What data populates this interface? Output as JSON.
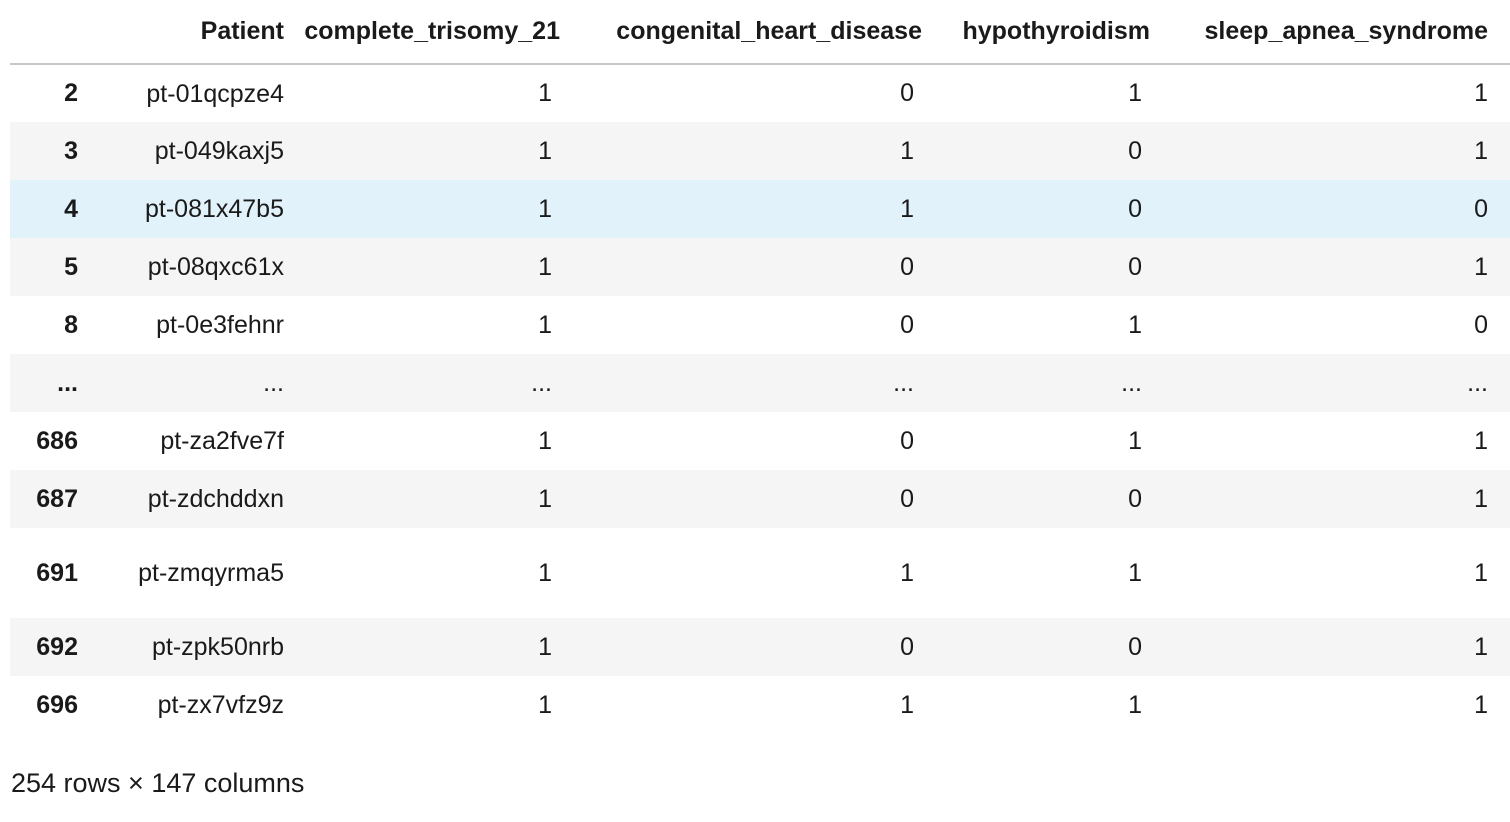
{
  "table": {
    "columns": [
      "",
      "Patient",
      "complete_trisomy_21",
      "congenital_heart_disease",
      "hypothyroidism",
      "sleep_apnea_syndrome"
    ],
    "rows": [
      {
        "index": "2",
        "patient": "pt-01qcpze4",
        "complete_trisomy_21": "1",
        "congenital_heart_disease": "0",
        "hypothyroidism": "1",
        "sleep_apnea_syndrome": "1"
      },
      {
        "index": "3",
        "patient": "pt-049kaxj5",
        "complete_trisomy_21": "1",
        "congenital_heart_disease": "1",
        "hypothyroidism": "0",
        "sleep_apnea_syndrome": "1"
      },
      {
        "index": "4",
        "patient": "pt-081x47b5",
        "complete_trisomy_21": "1",
        "congenital_heart_disease": "1",
        "hypothyroidism": "0",
        "sleep_apnea_syndrome": "0"
      },
      {
        "index": "5",
        "patient": "pt-08qxc61x",
        "complete_trisomy_21": "1",
        "congenital_heart_disease": "0",
        "hypothyroidism": "0",
        "sleep_apnea_syndrome": "1"
      },
      {
        "index": "8",
        "patient": "pt-0e3fehnr",
        "complete_trisomy_21": "1",
        "congenital_heart_disease": "0",
        "hypothyroidism": "1",
        "sleep_apnea_syndrome": "0"
      },
      {
        "index": "...",
        "patient": "...",
        "complete_trisomy_21": "...",
        "congenital_heart_disease": "...",
        "hypothyroidism": "...",
        "sleep_apnea_syndrome": "..."
      },
      {
        "index": "686",
        "patient": "pt-za2fve7f",
        "complete_trisomy_21": "1",
        "congenital_heart_disease": "0",
        "hypothyroidism": "1",
        "sleep_apnea_syndrome": "1"
      },
      {
        "index": "687",
        "patient": "pt-zdchddxn",
        "complete_trisomy_21": "1",
        "congenital_heart_disease": "0",
        "hypothyroidism": "0",
        "sleep_apnea_syndrome": "1"
      },
      {
        "index": "691",
        "patient": "pt-zmqyrma5",
        "complete_trisomy_21": "1",
        "congenital_heart_disease": "1",
        "hypothyroidism": "1",
        "sleep_apnea_syndrome": "1"
      },
      {
        "index": "692",
        "patient": "pt-zpk50nrb",
        "complete_trisomy_21": "1",
        "congenital_heart_disease": "0",
        "hypothyroidism": "0",
        "sleep_apnea_syndrome": "1"
      },
      {
        "index": "696",
        "patient": "pt-zx7vfz9z",
        "complete_trisomy_21": "1",
        "congenital_heart_disease": "1",
        "hypothyroidism": "1",
        "sleep_apnea_syndrome": "1"
      }
    ]
  },
  "footer": {
    "shape_text": "254 rows × 147 columns"
  },
  "colors": {
    "stripe": "#f5f5f5",
    "hover_row": "#e2f2fb",
    "header_rule": "#c8c8c8"
  }
}
